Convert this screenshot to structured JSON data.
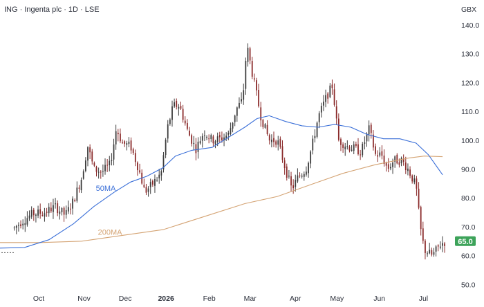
{
  "header": {
    "title": "ING · Ingenta plc · 1D · LSE",
    "currency": "GBX"
  },
  "colors": {
    "up_candle": "#3b3b3b",
    "down_candle": "#8a2a2a",
    "ma50": "#3a6fd8",
    "ma200": "#d4a373",
    "last_price_bg": "#3da35a",
    "grid": "#ffffff"
  },
  "chart_data": {
    "type": "candlestick",
    "title": "ING · Ingenta plc · 1D · LSE",
    "y_unit": "GBX",
    "ylim": [
      47.5,
      142.5
    ],
    "y_ticks": [
      "50.0",
      "60.0",
      "70.0",
      "80.0",
      "90.0",
      "100.0",
      "110.0",
      "120.0",
      "130.0",
      "140.0"
    ],
    "x_ticks": [
      {
        "label": "Oct",
        "bold": false,
        "pos": 0.095
      },
      {
        "label": "Nov",
        "bold": false,
        "pos": 0.206
      },
      {
        "label": "Dec",
        "bold": false,
        "pos": 0.307
      },
      {
        "label": "2026",
        "bold": true,
        "pos": 0.407
      },
      {
        "label": "Feb",
        "bold": false,
        "pos": 0.513
      },
      {
        "label": "Mar",
        "bold": false,
        "pos": 0.613
      },
      {
        "label": "Apr",
        "bold": false,
        "pos": 0.724
      },
      {
        "label": "May",
        "bold": false,
        "pos": 0.826
      },
      {
        "label": "Jun",
        "bold": false,
        "pos": 0.93
      },
      {
        "label": "Jul",
        "bold": false,
        "pos": 1.038
      }
    ],
    "price_path": [
      [
        0.0,
        61.0
      ],
      [
        0.02,
        67.5
      ],
      [
        0.05,
        71.5
      ],
      [
        0.08,
        74.5
      ],
      [
        0.11,
        75.0
      ],
      [
        0.135,
        77.0
      ],
      [
        0.16,
        74.0
      ],
      [
        0.18,
        79.0
      ],
      [
        0.2,
        87.0
      ],
      [
        0.215,
        98.0
      ],
      [
        0.23,
        90.0
      ],
      [
        0.25,
        89.0
      ],
      [
        0.27,
        91.5
      ],
      [
        0.285,
        104.0
      ],
      [
        0.3,
        99.0
      ],
      [
        0.32,
        98.0
      ],
      [
        0.34,
        90.0
      ],
      [
        0.355,
        82.0
      ],
      [
        0.375,
        85.0
      ],
      [
        0.395,
        88.5
      ],
      [
        0.41,
        104.0
      ],
      [
        0.425,
        112.0
      ],
      [
        0.44,
        112.0
      ],
      [
        0.46,
        103.0
      ],
      [
        0.48,
        97.0
      ],
      [
        0.5,
        103.0
      ],
      [
        0.52,
        100.0
      ],
      [
        0.54,
        100.5
      ],
      [
        0.56,
        102.0
      ],
      [
        0.58,
        111.0
      ],
      [
        0.595,
        114.0
      ],
      [
        0.605,
        133.0
      ],
      [
        0.62,
        122.0
      ],
      [
        0.64,
        108.0
      ],
      [
        0.66,
        100.0
      ],
      [
        0.68,
        100.0
      ],
      [
        0.7,
        90.0
      ],
      [
        0.715,
        83.0
      ],
      [
        0.73,
        87.0
      ],
      [
        0.75,
        90.0
      ],
      [
        0.765,
        98.0
      ],
      [
        0.78,
        108.0
      ],
      [
        0.8,
        115.0
      ],
      [
        0.815,
        119.0
      ],
      [
        0.83,
        100.0
      ],
      [
        0.85,
        98.0
      ],
      [
        0.87,
        97.0
      ],
      [
        0.885,
        96.0
      ],
      [
        0.905,
        104.0
      ],
      [
        0.92,
        95.0
      ],
      [
        0.935,
        95.0
      ],
      [
        0.95,
        90.0
      ],
      [
        0.965,
        93.0
      ],
      [
        0.985,
        93.0
      ],
      [
        1.0,
        90.0
      ],
      [
        1.02,
        84.0
      ],
      [
        1.03,
        70.0
      ],
      [
        1.04,
        62.0
      ],
      [
        1.06,
        60.0
      ],
      [
        1.08,
        64.0
      ],
      [
        1.095,
        65.0
      ]
    ],
    "ma50_path": [
      [
        0.0,
        62.6
      ],
      [
        0.06,
        62.8
      ],
      [
        0.12,
        65.5
      ],
      [
        0.18,
        71.0
      ],
      [
        0.23,
        77.0
      ],
      [
        0.28,
        82.0
      ],
      [
        0.32,
        85.5
      ],
      [
        0.36,
        87.5
      ],
      [
        0.4,
        90.5
      ],
      [
        0.43,
        94.5
      ],
      [
        0.47,
        96.5
      ],
      [
        0.52,
        97.5
      ],
      [
        0.56,
        101.0
      ],
      [
        0.6,
        104.5
      ],
      [
        0.63,
        107.5
      ],
      [
        0.66,
        108.5
      ],
      [
        0.7,
        106.5
      ],
      [
        0.74,
        105.0
      ],
      [
        0.78,
        104.5
      ],
      [
        0.82,
        105.5
      ],
      [
        0.86,
        104.5
      ],
      [
        0.9,
        102.0
      ],
      [
        0.94,
        100.5
      ],
      [
        0.98,
        100.5
      ],
      [
        1.02,
        99.0
      ],
      [
        1.05,
        95.0
      ],
      [
        1.085,
        88.0
      ]
    ],
    "ma200_path": [
      [
        0.0,
        64.5
      ],
      [
        0.1,
        64.5
      ],
      [
        0.2,
        65.0
      ],
      [
        0.3,
        67.0
      ],
      [
        0.4,
        69.0
      ],
      [
        0.5,
        73.5
      ],
      [
        0.6,
        78.0
      ],
      [
        0.68,
        80.5
      ],
      [
        0.76,
        84.5
      ],
      [
        0.84,
        88.5
      ],
      [
        0.92,
        91.5
      ],
      [
        1.0,
        93.8
      ],
      [
        1.04,
        94.5
      ],
      [
        1.085,
        94.3
      ]
    ],
    "last_price": 65.0,
    "last_price_label": "65.0",
    "ma_labels": [
      {
        "text": "50MA",
        "series": "ma50",
        "pos": 0.235,
        "value": 82.5
      },
      {
        "text": "200MA",
        "series": "ma200",
        "pos": 0.24,
        "value": 67.2
      }
    ],
    "legend": "none",
    "grid": false
  }
}
